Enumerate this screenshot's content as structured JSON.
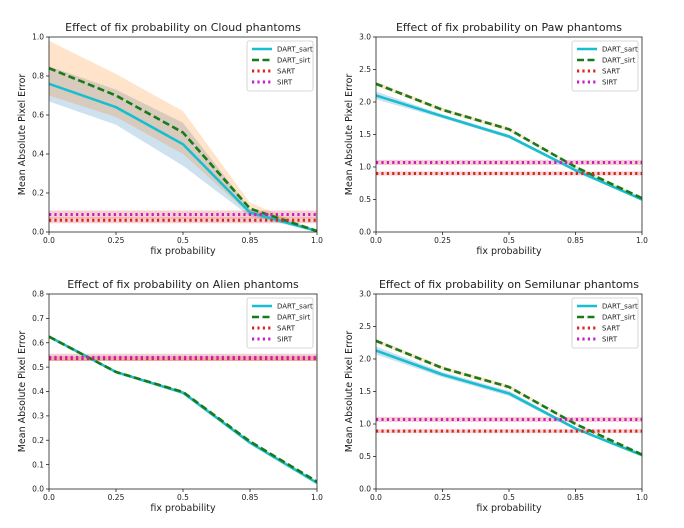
{
  "colors": {
    "DART_sart": "#17becf",
    "DART_sirt": "#1a7a1a",
    "SART": "#d62728",
    "SIRT": "#c61fc6",
    "band_sart": "#1f77b4",
    "band_sirt": "#ff7f0e"
  },
  "chart_data": [
    {
      "type": "line",
      "title": "Effect of fix probability on Cloud phantoms",
      "xlabel": "fix probability",
      "ylabel": "Mean Absolute Pixel Error",
      "categories": [
        "0.0",
        "0.25",
        "0.5",
        "0.85",
        "1.0"
      ],
      "ylim": [
        0,
        1.0
      ],
      "yticks": [
        "0.0",
        "0.2",
        "0.4",
        "0.6",
        "0.8",
        "1.0"
      ],
      "legend": "top-right",
      "series": [
        {
          "name": "DART_sart",
          "style": "solid",
          "values": [
            0.76,
            0.64,
            0.45,
            0.1,
            0.005
          ],
          "band": [
            0.09,
            0.09,
            0.11,
            0.02,
            0.003
          ]
        },
        {
          "name": "DART_sirt",
          "style": "dashed",
          "values": [
            0.84,
            0.7,
            0.51,
            0.12,
            0.005
          ],
          "band": [
            0.14,
            0.11,
            0.11,
            0.03,
            0.003
          ]
        },
        {
          "name": "SART",
          "style": "dotted",
          "values": [
            0.06,
            0.06,
            0.06,
            0.06,
            0.06
          ],
          "band": [
            0.015,
            0.015,
            0.015,
            0.015,
            0.015
          ]
        },
        {
          "name": "SIRT",
          "style": "dotted",
          "values": [
            0.09,
            0.09,
            0.09,
            0.09,
            0.09
          ],
          "band": [
            0.02,
            0.02,
            0.02,
            0.02,
            0.02
          ]
        }
      ]
    },
    {
      "type": "line",
      "title": "Effect of fix probability on Paw phantoms",
      "xlabel": "fix probability",
      "ylabel": "Mean Absolute Pixel Error",
      "categories": [
        "0.0",
        "0.25",
        "0.5",
        "0.85",
        "1.0"
      ],
      "ylim": [
        0,
        3.0
      ],
      "yticks": [
        "0.0",
        "0.5",
        "1.0",
        "1.5",
        "2.0",
        "2.5",
        "3.0"
      ],
      "legend": "top-right",
      "series": [
        {
          "name": "DART_sart",
          "style": "solid",
          "values": [
            2.1,
            1.78,
            1.47,
            0.95,
            0.5
          ],
          "band": [
            0.06,
            0.03,
            0.03,
            0.02,
            0.01
          ]
        },
        {
          "name": "DART_sirt",
          "style": "dashed",
          "values": [
            2.28,
            1.88,
            1.58,
            1.0,
            0.52
          ],
          "band": [
            0.03,
            0.03,
            0.03,
            0.02,
            0.01
          ]
        },
        {
          "name": "SART",
          "style": "dotted",
          "values": [
            0.9,
            0.9,
            0.9,
            0.9,
            0.9
          ],
          "band": [
            0.03,
            0.03,
            0.03,
            0.03,
            0.03
          ]
        },
        {
          "name": "SIRT",
          "style": "dotted",
          "values": [
            1.07,
            1.07,
            1.07,
            1.07,
            1.07
          ],
          "band": [
            0.04,
            0.04,
            0.04,
            0.04,
            0.04
          ]
        }
      ]
    },
    {
      "type": "line",
      "title": "Effect of fix probability on Alien phantoms",
      "xlabel": "fix probability",
      "ylabel": "Mean Absolute Pixel Error",
      "categories": [
        "0.0",
        "0.25",
        "0.5",
        "0.85",
        "1.0"
      ],
      "ylim": [
        0,
        0.8
      ],
      "yticks": [
        "0.0",
        "0.1",
        "0.2",
        "0.3",
        "0.4",
        "0.5",
        "0.6",
        "0.7",
        "0.8"
      ],
      "legend": "top-right",
      "series": [
        {
          "name": "DART_sart",
          "style": "solid",
          "values": [
            0.625,
            0.48,
            0.395,
            0.19,
            0.025
          ],
          "band": [
            0.005,
            0.004,
            0.004,
            0.004,
            0.003
          ]
        },
        {
          "name": "DART_sirt",
          "style": "dashed",
          "values": [
            0.625,
            0.48,
            0.398,
            0.195,
            0.03
          ],
          "band": [
            0.005,
            0.004,
            0.004,
            0.004,
            0.003
          ]
        },
        {
          "name": "SART",
          "style": "dotted",
          "values": [
            0.535,
            0.535,
            0.535,
            0.535,
            0.535
          ],
          "band": [
            0.01,
            0.01,
            0.01,
            0.01,
            0.01
          ]
        },
        {
          "name": "SIRT",
          "style": "dotted",
          "values": [
            0.54,
            0.54,
            0.54,
            0.54,
            0.54
          ],
          "band": [
            0.015,
            0.015,
            0.015,
            0.015,
            0.015
          ]
        }
      ]
    },
    {
      "type": "line",
      "title": "Effect of fix probability on Semilunar phantoms",
      "xlabel": "fix probability",
      "ylabel": "Mean Absolute Pixel Error",
      "categories": [
        "0.0",
        "0.25",
        "0.5",
        "0.85",
        "1.0"
      ],
      "ylim": [
        0,
        3.0
      ],
      "yticks": [
        "0.0",
        "0.5",
        "1.0",
        "1.5",
        "2.0",
        "2.5",
        "3.0"
      ],
      "legend": "top-right",
      "series": [
        {
          "name": "DART_sart",
          "style": "solid",
          "values": [
            2.13,
            1.76,
            1.47,
            0.93,
            0.52
          ],
          "band": [
            0.06,
            0.04,
            0.04,
            0.02,
            0.01
          ]
        },
        {
          "name": "DART_sirt",
          "style": "dashed",
          "values": [
            2.28,
            1.86,
            1.57,
            1.0,
            0.53
          ],
          "band": [
            0.03,
            0.03,
            0.03,
            0.02,
            0.01
          ]
        },
        {
          "name": "SART",
          "style": "dotted",
          "values": [
            0.89,
            0.89,
            0.89,
            0.89,
            0.89
          ],
          "band": [
            0.03,
            0.03,
            0.03,
            0.03,
            0.03
          ]
        },
        {
          "name": "SIRT",
          "style": "dotted",
          "values": [
            1.07,
            1.07,
            1.07,
            1.07,
            1.07
          ],
          "band": [
            0.04,
            0.04,
            0.04,
            0.04,
            0.04
          ]
        }
      ]
    }
  ]
}
